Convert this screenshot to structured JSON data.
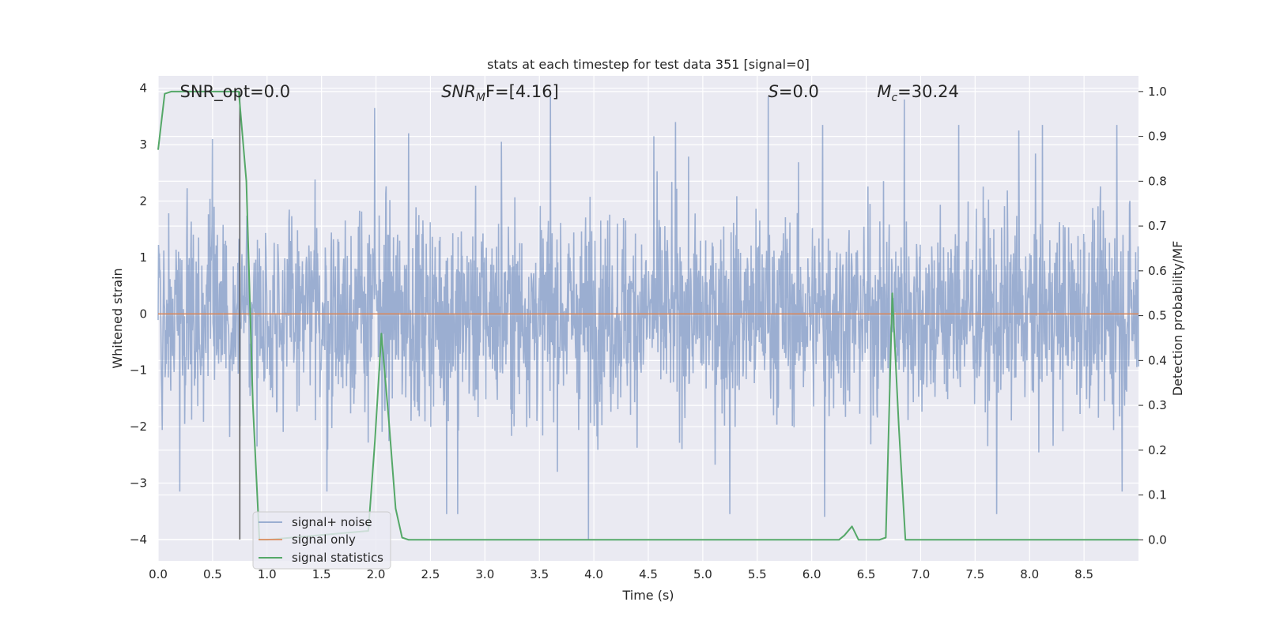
{
  "chart_data": {
    "type": "line",
    "title": "stats at each timestep for test data 351 [signal=0]",
    "xlabel": "Time (s)",
    "ylabel_left": "Whitened strain",
    "ylabel_right": "Detection probability/MF",
    "xlim": [
      0.0,
      9.0
    ],
    "ylim_left": [
      -4.38,
      4.22
    ],
    "ylim_right": [
      -0.047,
      1.035
    ],
    "x_ticks": [
      "0.0",
      "0.5",
      "1.0",
      "1.5",
      "2.0",
      "2.5",
      "3.0",
      "3.5",
      "4.0",
      "4.5",
      "5.0",
      "5.5",
      "6.0",
      "6.5",
      "7.0",
      "7.5",
      "8.0",
      "8.5"
    ],
    "y_ticks_left": [
      "4",
      "3",
      "2",
      "1",
      "0",
      "−1",
      "−2",
      "−3",
      "−4"
    ],
    "y_ticks_right": [
      "1.0",
      "0.9",
      "0.8",
      "0.7",
      "0.6",
      "0.5",
      "0.4",
      "0.3",
      "0.2",
      "0.1",
      "0.0"
    ],
    "grid": true,
    "legend_position": "lower-left",
    "marker_line_x": 0.75,
    "annotations": [
      {
        "name": "snr-opt",
        "text": "SNR_opt=0.0",
        "x_data": 0.2
      },
      {
        "name": "snr-mf",
        "prefix": "SNR",
        "sub": "M",
        "suffix": "F=[4.16]",
        "x_data": 2.6
      },
      {
        "name": "s",
        "prefix": "S",
        "sub": "",
        "suffix": "=0.0",
        "x_data": 5.6
      },
      {
        "name": "mc",
        "prefix": "M",
        "sub": "c",
        "suffix": "=30.24",
        "x_data": 6.6
      }
    ],
    "series": [
      {
        "name": "signal+ noise",
        "color": "#4c72b0",
        "axis": "left",
        "description_only": false,
        "peaks_positive": [
          [
            1.99,
            3.65
          ],
          [
            3.6,
            3.85
          ],
          [
            4.75,
            3.4
          ],
          [
            5.6,
            3.85
          ],
          [
            6.1,
            3.35
          ],
          [
            6.85,
            3.8
          ],
          [
            7.35,
            3.35
          ],
          [
            8.12,
            3.35
          ],
          [
            8.8,
            3.35
          ],
          [
            0.5,
            3.1
          ],
          [
            2.3,
            3.2
          ],
          [
            3.15,
            3.05
          ],
          [
            4.55,
            3.15
          ],
          [
            7.9,
            3.25
          ]
        ],
        "peaks_negative": [
          [
            3.95,
            -4.0
          ],
          [
            6.12,
            -3.6
          ],
          [
            2.65,
            -3.55
          ],
          [
            2.75,
            -3.55
          ],
          [
            5.25,
            -3.55
          ],
          [
            7.7,
            -3.55
          ],
          [
            0.2,
            -3.15
          ],
          [
            1.55,
            -3.15
          ],
          [
            8.85,
            -3.15
          ]
        ]
      },
      {
        "name": "signal only",
        "color": "#dd8452",
        "axis": "left",
        "x": [
          0.0,
          9.0
        ],
        "y": [
          0.0,
          0.0
        ]
      },
      {
        "name": "signal statistics",
        "color": "#55a868",
        "axis": "right",
        "x": [
          0.0,
          0.06,
          0.12,
          0.18,
          0.25,
          0.31,
          0.37,
          0.43,
          0.5,
          0.56,
          0.62,
          0.68,
          0.74,
          0.81,
          0.87,
          0.93,
          1.0,
          1.93,
          1.99,
          2.05,
          2.12,
          2.18,
          2.24,
          2.3,
          3.0,
          6.25,
          6.3,
          6.37,
          6.43,
          6.49,
          6.55,
          6.62,
          6.68,
          6.74,
          6.8,
          6.86,
          6.93,
          7.0,
          9.0
        ],
        "y": [
          0.87,
          0.995,
          1.0,
          1.0,
          1.0,
          1.0,
          1.0,
          1.0,
          1.0,
          1.0,
          1.0,
          1.0,
          1.0,
          0.8,
          0.3,
          0.0,
          0.0,
          0.02,
          0.22,
          0.46,
          0.26,
          0.07,
          0.005,
          0.0,
          0.0,
          0.0,
          0.01,
          0.03,
          0.0,
          0.0,
          0.0,
          0.0,
          0.005,
          0.55,
          0.25,
          0.0,
          0.0,
          0.0,
          0.0
        ]
      }
    ]
  }
}
